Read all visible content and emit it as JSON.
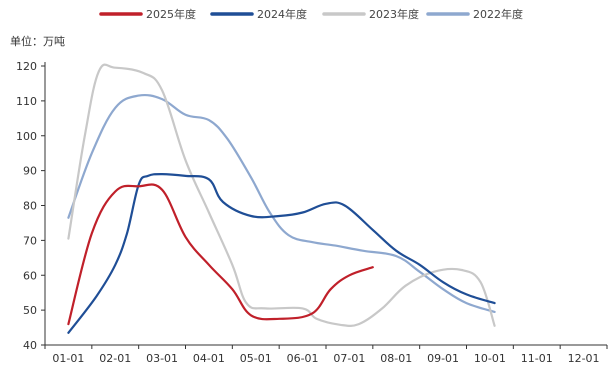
{
  "chart_data": {
    "type": "line",
    "title": "",
    "unit_label": "单位：万吨",
    "xlabel": "",
    "ylabel": "",
    "categories": [
      "01-01",
      "02-01",
      "03-01",
      "04-01",
      "05-01",
      "06-01",
      "07-01",
      "08-01",
      "09-01",
      "10-01",
      "11-01",
      "12-01"
    ],
    "ylim": [
      40,
      120
    ],
    "yticks": [
      40,
      50,
      60,
      70,
      80,
      90,
      100,
      110,
      120
    ],
    "grid": false,
    "legend_position": "top-center",
    "series": [
      {
        "name": "2025年度",
        "color": "#c0202a",
        "points": [
          [
            0,
            46
          ],
          [
            0.5,
            72
          ],
          [
            1,
            84
          ],
          [
            1.5,
            85.5
          ],
          [
            2,
            84.5
          ],
          [
            2.5,
            71
          ],
          [
            3,
            63
          ],
          [
            3.5,
            56
          ],
          [
            3.9,
            48.5
          ],
          [
            4.5,
            47.5
          ],
          [
            5.2,
            49
          ],
          [
            5.6,
            56
          ],
          [
            6,
            60
          ],
          [
            6.5,
            62.3
          ]
        ]
      },
      {
        "name": "2024年度",
        "color": "#1f4e96",
        "points": [
          [
            0,
            43.5
          ],
          [
            0.6,
            54
          ],
          [
            1,
            63
          ],
          [
            1.25,
            72
          ],
          [
            1.5,
            86
          ],
          [
            1.7,
            88.5
          ],
          [
            2,
            89
          ],
          [
            2.5,
            88.5
          ],
          [
            3,
            87.5
          ],
          [
            3.3,
            81
          ],
          [
            3.9,
            77
          ],
          [
            4.5,
            77
          ],
          [
            5,
            78
          ],
          [
            5.5,
            80.5
          ],
          [
            5.9,
            80
          ],
          [
            6.5,
            73
          ],
          [
            7,
            67
          ],
          [
            7.5,
            63
          ],
          [
            8,
            58
          ],
          [
            8.5,
            54.5
          ],
          [
            9.1,
            52
          ]
        ]
      },
      {
        "name": "2023年度",
        "color": "#c8c8c8",
        "points": [
          [
            0,
            70.5
          ],
          [
            0.35,
            100
          ],
          [
            0.65,
            118.5
          ],
          [
            1,
            119.5
          ],
          [
            1.6,
            118
          ],
          [
            2,
            113
          ],
          [
            2.5,
            93
          ],
          [
            3,
            78
          ],
          [
            3.5,
            63
          ],
          [
            3.8,
            52
          ],
          [
            4.2,
            50.5
          ],
          [
            5,
            50.5
          ],
          [
            5.3,
            47.5
          ],
          [
            5.8,
            45.8
          ],
          [
            6.2,
            46
          ],
          [
            6.7,
            50.5
          ],
          [
            7.2,
            57
          ],
          [
            7.8,
            61
          ],
          [
            8.4,
            61.5
          ],
          [
            8.8,
            58
          ],
          [
            9.1,
            45.5
          ]
        ]
      },
      {
        "name": "2022年度",
        "color": "#8ea8cf",
        "points": [
          [
            0,
            76.5
          ],
          [
            0.5,
            95
          ],
          [
            1,
            108
          ],
          [
            1.5,
            111.5
          ],
          [
            2,
            110.5
          ],
          [
            2.5,
            106
          ],
          [
            3,
            104.5
          ],
          [
            3.4,
            99
          ],
          [
            3.9,
            88
          ],
          [
            4.3,
            78
          ],
          [
            4.7,
            71.5
          ],
          [
            5.2,
            69.5
          ],
          [
            5.7,
            68.5
          ],
          [
            6.3,
            67
          ],
          [
            7,
            65.5
          ],
          [
            7.5,
            61
          ],
          [
            8,
            56
          ],
          [
            8.5,
            52
          ],
          [
            9.1,
            49.5
          ]
        ]
      }
    ]
  }
}
